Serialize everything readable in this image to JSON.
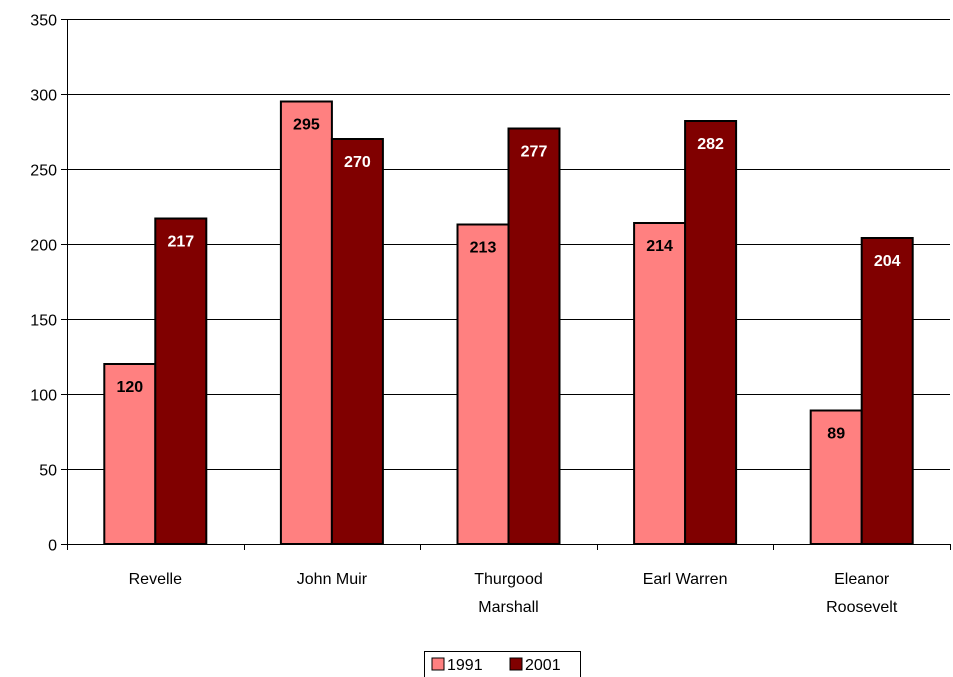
{
  "chart_data": {
    "type": "bar",
    "categories": [
      [
        "Revelle"
      ],
      [
        "John Muir"
      ],
      [
        "Thurgood",
        "Marshall"
      ],
      [
        "Earl Warren"
      ],
      [
        "Eleanor",
        "Roosevelt"
      ]
    ],
    "series": [
      {
        "name": "1991",
        "color": "#FF8080",
        "label_color": "#000000",
        "values": [
          120,
          295,
          213,
          214,
          89
        ]
      },
      {
        "name": "2001",
        "color": "#800000",
        "label_color": "#FFFFFF",
        "values": [
          217,
          270,
          277,
          282,
          204
        ]
      }
    ],
    "ylim": [
      0,
      350
    ],
    "yticks": [
      0,
      50,
      100,
      150,
      200,
      250,
      300,
      350
    ],
    "grid": true,
    "legend": "bottom",
    "title": "",
    "xlabel": "",
    "ylabel": ""
  }
}
